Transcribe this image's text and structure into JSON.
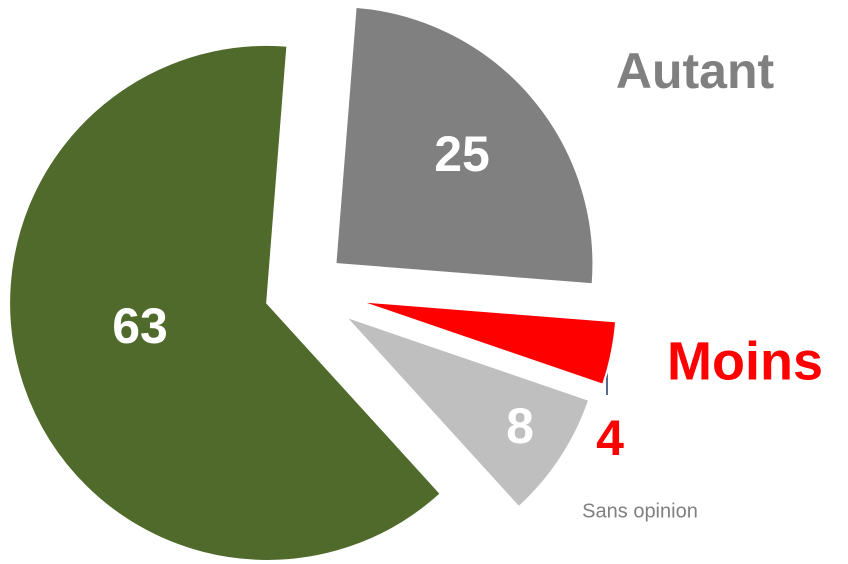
{
  "chart_data": {
    "type": "pie",
    "categories": [
      "Autant",
      "Moins",
      "Sans opinion",
      null
    ],
    "values": [
      25,
      4,
      8,
      63
    ],
    "colors": [
      "#808080",
      "#ff0000",
      "#bfbfbf",
      "#4f6a2b"
    ]
  }
}
